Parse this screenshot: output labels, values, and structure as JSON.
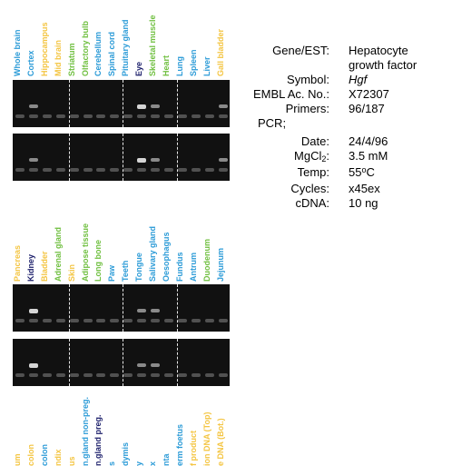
{
  "colors": {
    "blue": "#2b9bd7",
    "yellow": "#f4c542",
    "green": "#6fbf3f",
    "navy": "#1c1f6b"
  },
  "panel1": {
    "lanes": [
      {
        "label": "Whole brain",
        "color": "blue"
      },
      {
        "label": "Cortex",
        "color": "blue"
      },
      {
        "label": "Hippocampus",
        "color": "yellow"
      },
      {
        "label": "Mid brain",
        "color": "yellow"
      },
      {
        "label": "Striatum",
        "color": "green"
      },
      {
        "label": "Olfactory bulb",
        "color": "green"
      },
      {
        "label": "Cerebellum",
        "color": "blue"
      },
      {
        "label": "Spinal cord",
        "color": "blue"
      },
      {
        "label": "Pituitary gland",
        "color": "blue"
      },
      {
        "label": "Eye",
        "color": "navy"
      },
      {
        "label": "Skeletal muscle",
        "color": "green"
      },
      {
        "label": "Heart",
        "color": "green"
      },
      {
        "label": "Lung",
        "color": "blue"
      },
      {
        "label": "Spleen",
        "color": "blue"
      },
      {
        "label": "Liver",
        "color": "blue"
      },
      {
        "label": "Gall bladder",
        "color": "yellow"
      }
    ]
  },
  "panel2": {
    "lanes": [
      {
        "label": "Pancreas",
        "color": "yellow"
      },
      {
        "label": "Kidney",
        "color": "navy"
      },
      {
        "label": "Bladder",
        "color": "yellow"
      },
      {
        "label": "Adrenal gland",
        "color": "green"
      },
      {
        "label": "Skin",
        "color": "yellow"
      },
      {
        "label": "Adipose tissue",
        "color": "green"
      },
      {
        "label": "Long bone",
        "color": "green"
      },
      {
        "label": "Paw",
        "color": "blue"
      },
      {
        "label": "Teeth",
        "color": "blue"
      },
      {
        "label": "Tongue",
        "color": "blue"
      },
      {
        "label": "Salivary gland",
        "color": "blue"
      },
      {
        "label": "Oesophagus",
        "color": "blue"
      },
      {
        "label": "Fundus",
        "color": "blue"
      },
      {
        "label": "Antrum",
        "color": "blue"
      },
      {
        "label": "Duodenum",
        "color": "green"
      },
      {
        "label": "Jejunum",
        "color": "blue"
      }
    ]
  },
  "panel3": {
    "lanes": [
      {
        "label": "um",
        "color": "yellow"
      },
      {
        "label": "colon",
        "color": "yellow"
      },
      {
        "label": "colon",
        "color": "blue"
      },
      {
        "label": "ndix",
        "color": "yellow"
      },
      {
        "label": "us",
        "color": "yellow"
      },
      {
        "label": "n.gland non-preg.",
        "color": "blue"
      },
      {
        "label": "n.gland preg.",
        "color": "navy"
      },
      {
        "label": "s",
        "color": "blue"
      },
      {
        "label": "dymis",
        "color": "blue"
      },
      {
        "label": "y",
        "color": "blue"
      },
      {
        "label": "x",
        "color": "blue"
      },
      {
        "label": "nta",
        "color": "blue"
      },
      {
        "label": "erm foetus",
        "color": "blue"
      },
      {
        "label": "f product",
        "color": "yellow"
      },
      {
        "label": "ion DNA (Top)",
        "color": "yellow"
      },
      {
        "label": "e DNA (Bot.)",
        "color": "yellow"
      }
    ]
  },
  "info": {
    "gene_label": "Gene/EST:",
    "gene_value_line1": "Hepatocyte",
    "gene_value_line2": "growth factor",
    "symbol_label": "Symbol:",
    "symbol_value": "Hgf",
    "embl_label": "EMBL Ac. No.:",
    "embl_value": "X72307",
    "primers_label": "Primers:",
    "primers_value": "96/187",
    "pcr_label": "PCR;",
    "date_label": "Date:",
    "date_value": "24/4/96",
    "mgcl_label_pre": "MgCl",
    "mgcl_label_sub": "2",
    "mgcl_label_post": ":",
    "mgcl_value": "3.5 mM",
    "temp_label": "Temp:",
    "temp_value_pre": "55",
    "temp_value_sup": "o",
    "temp_value_post": "C",
    "cycles_label": "Cycles:",
    "cycles_value": "x45ex",
    "cdna_label": "cDNA:",
    "cdna_value": "10 ng"
  }
}
